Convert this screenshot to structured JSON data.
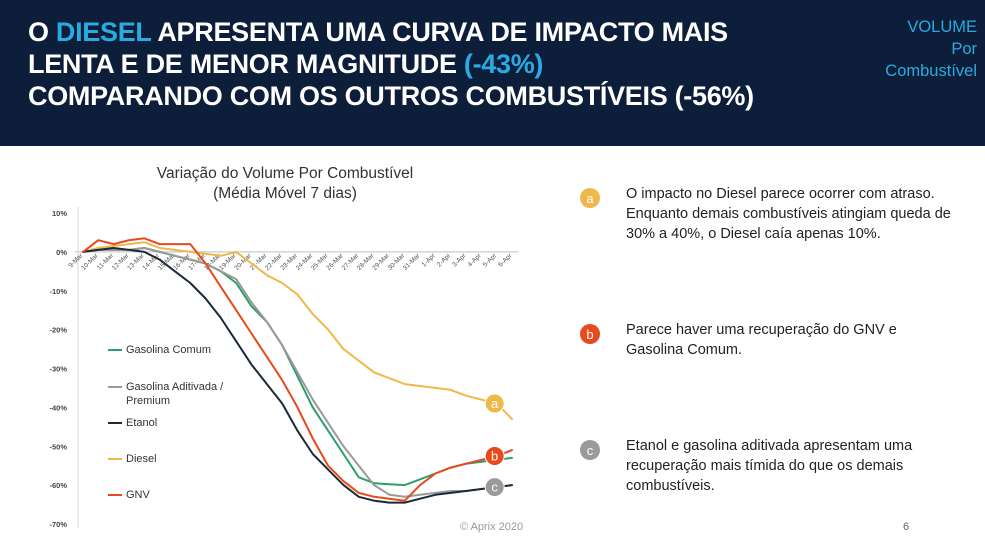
{
  "header": {
    "title_line1_a": "O ",
    "title_line1_hl": "DIESEL",
    "title_line1_b": " APRESENTA UMA CURVA DE IMPACTO MAIS",
    "title_line2_a": "LENTA E DE MENOR MAGNITUDE ",
    "title_line2_hl": "(-43%)",
    "title_line3": "COMPARANDO COM OS OUTROS COMBUSTÍVEIS (-56%)",
    "corner_line1": "VOLUME",
    "corner_line2": "Por",
    "corner_line3": "Combustível"
  },
  "colors": {
    "header_bg": "#0c1e3a",
    "accent": "#29abe2",
    "gasolina_comum": "#2e9e6b",
    "gasolina_aditivada": "#9a9a9a",
    "etanol": "#1b2a3a",
    "diesel": "#f0b84a",
    "gnv": "#e8491d"
  },
  "chart_data": {
    "type": "line",
    "title": "Variação do Volume Por Combustível",
    "subtitle": "(Média Móvel 7 dias)",
    "ylim": [
      -70,
      10
    ],
    "yticks": [
      "10%",
      "0%",
      "-10%",
      "-20%",
      "-30%",
      "-40%",
      "-50%",
      "-60%",
      "-70%"
    ],
    "ytick_values": [
      10,
      0,
      -10,
      -20,
      -30,
      -40,
      -50,
      -60,
      -70
    ],
    "x": [
      "9-Mar",
      "10-Mar",
      "11-Mar",
      "12-Mar",
      "13-Mar",
      "14-Mar",
      "15-Mar",
      "16-Mar",
      "17-Mar",
      "18-Mar",
      "19-Mar",
      "20-Mar",
      "21-Mar",
      "22-Mar",
      "23-Mar",
      "24-Mar",
      "25-Mar",
      "26-Mar",
      "27-Mar",
      "28-Mar",
      "29-Mar",
      "30-Mar",
      "31-Mar",
      "1-Apr",
      "2-Apr",
      "3-Apr",
      "4-Apr",
      "5-Apr",
      "6-Apr"
    ],
    "legend_position": "left",
    "series": [
      {
        "name": "Gasolina Comum",
        "color_key": "gasolina_comum",
        "values": [
          0,
          0.5,
          0.5,
          0.5,
          1,
          0,
          -1,
          -2,
          -3,
          -5,
          -8,
          -14,
          -18,
          -24,
          -32,
          -40,
          -46,
          -52,
          -58,
          -59.5,
          -59.8,
          -60,
          -58.5,
          -57,
          -55.5,
          -54.5,
          -54,
          -53.5,
          -53
        ]
      },
      {
        "name": "Gasolina Aditivada / Premium",
        "color_key": "gasolina_aditivada",
        "values": [
          0,
          0.5,
          0.5,
          0.5,
          1,
          0,
          -1,
          -2,
          -3,
          -5,
          -7,
          -13,
          -18,
          -24,
          -31,
          -38,
          -44,
          -50,
          -55,
          -60,
          -62.5,
          -63,
          -62.5,
          -62,
          -61.5,
          -61.5,
          -61,
          -60.5,
          -60
        ]
      },
      {
        "name": "Etanol",
        "color_key": "etanol",
        "values": [
          0,
          0.5,
          1,
          0.5,
          0,
          -2,
          -5,
          -8,
          -12,
          -17,
          -23,
          -29,
          -34,
          -39,
          -46,
          -52,
          -56,
          -60,
          -63,
          -64,
          -64.5,
          -64.5,
          -63.5,
          -62.5,
          -62,
          -61.5,
          -61,
          -60.5,
          -60
        ]
      },
      {
        "name": "Diesel",
        "color_key": "diesel",
        "values": [
          0,
          1,
          1.5,
          2,
          2.5,
          1,
          0.5,
          0,
          -0.5,
          -1,
          0,
          -3,
          -6,
          -8,
          -11,
          -16,
          -20,
          -25,
          -28,
          -31,
          -32.5,
          -34,
          -34.5,
          -35,
          -35.5,
          -37,
          -38,
          -39,
          -43
        ]
      },
      {
        "name": "GNV",
        "color_key": "gnv",
        "values": [
          0,
          3,
          2,
          3,
          3.5,
          2,
          2,
          2,
          -3,
          -9,
          -15,
          -21,
          -27,
          -33,
          -40,
          -48,
          -55,
          -59,
          -62,
          -63,
          -63.5,
          -64,
          -60,
          -57,
          -55.5,
          -54.5,
          -53.5,
          -52.5,
          -51
        ]
      }
    ],
    "markers": [
      {
        "label": "a",
        "series_index": 3,
        "point_index": 27
      },
      {
        "label": "b",
        "series_index": 4,
        "point_index": 27
      },
      {
        "label": "c",
        "series_index": 1,
        "point_index": 27
      }
    ]
  },
  "notes": [
    {
      "badge": "a",
      "color_key": "diesel",
      "text": "O impacto no Diesel parece ocorrer com atraso. Enquanto demais combustíveis atingiam queda de 30% a 40%, o Diesel caía apenas 10%."
    },
    {
      "badge": "b",
      "color_key": "gnv",
      "text": "Parece haver uma recuperação do GNV e Gasolina  Comum."
    },
    {
      "badge": "c",
      "color_key": "gasolina_aditivada",
      "text": "Etanol e gasolina aditivada apresentam uma recuperação mais tímida do que os demais combustíveis."
    }
  ],
  "footer": {
    "copyright": "© Aprix 2020",
    "page_number": "6"
  }
}
